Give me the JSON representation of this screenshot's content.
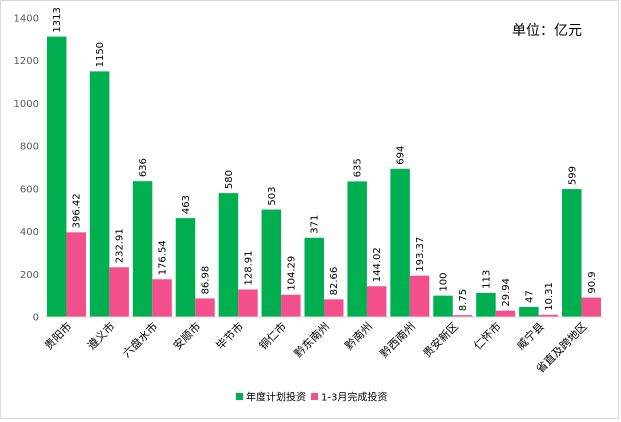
{
  "chart_data": {
    "type": "bar",
    "title": "",
    "unit_label": "单位：亿元",
    "xlabel": "",
    "ylabel": "",
    "ylim": [
      0,
      1400
    ],
    "yticks": [
      0,
      200,
      400,
      600,
      800,
      1000,
      1200,
      1400
    ],
    "grid": false,
    "legend_position": "bottom",
    "categories": [
      "贵阳市",
      "遵义市",
      "六盘水市",
      "安顺市",
      "毕节市",
      "铜仁市",
      "黔东南州",
      "黔南州",
      "黔西南州",
      "贵安新区",
      "仁怀市",
      "威宁县",
      "省直及跨地区"
    ],
    "series": [
      {
        "name": "年度计划投资",
        "color": "#00b050",
        "values": [
          1313,
          1150,
          636,
          463,
          580,
          503,
          371,
          635,
          694,
          100,
          113,
          47,
          599
        ],
        "labels": [
          "1313",
          "1150",
          "636",
          "463",
          "580",
          "503",
          "371",
          "635",
          "694",
          "100",
          "113",
          "47",
          "599"
        ]
      },
      {
        "name": "1-3月完成投资",
        "color": "#f34f8d",
        "values": [
          396.42,
          232.91,
          176.54,
          86.98,
          128.91,
          104.29,
          82.66,
          144.02,
          193.37,
          8.75,
          29.94,
          10.31,
          90.9
        ],
        "labels": [
          "396.42",
          "232.91",
          "176.54",
          "86.98",
          "128.91",
          "104.29",
          "82.66",
          "144.02",
          "193.37",
          "8.75",
          "29.94",
          "10.31",
          "90.9"
        ]
      }
    ]
  }
}
